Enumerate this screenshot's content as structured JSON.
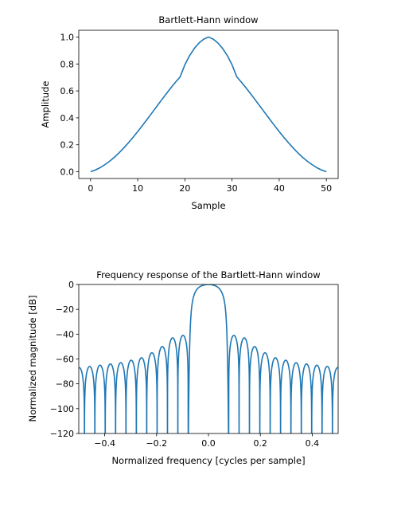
{
  "chart_data": [
    {
      "type": "line",
      "title": "Bartlett-Hann window",
      "xlabel": "Sample",
      "ylabel": "Amplitude",
      "xlim": [
        -2.5,
        52.5
      ],
      "ylim": [
        -0.05,
        1.05
      ],
      "xticks": [
        "0",
        "10",
        "20",
        "30",
        "40",
        "50"
      ],
      "yticks": [
        "0.0",
        "0.2",
        "0.4",
        "0.6",
        "0.8",
        "1.0"
      ],
      "color": "#1f77b4",
      "grid": false,
      "series": [
        {
          "x": [
            0,
            1,
            2,
            3,
            4,
            5,
            6,
            7,
            8,
            9,
            10,
            11,
            12,
            13,
            14,
            15,
            16,
            17,
            18,
            19,
            20,
            21,
            22,
            23,
            24,
            25,
            26,
            27,
            28,
            29,
            30,
            31,
            32,
            33,
            34,
            35,
            36,
            37,
            38,
            39,
            40,
            41,
            42,
            43,
            44,
            45,
            46,
            47,
            48,
            49,
            50
          ],
          "values": [
            0.0,
            0.013,
            0.03,
            0.052,
            0.077,
            0.106,
            0.139,
            0.175,
            0.214,
            0.255,
            0.298,
            0.343,
            0.389,
            0.436,
            0.483,
            0.53,
            0.576,
            0.621,
            0.664,
            0.705,
            0.794,
            0.862,
            0.915,
            0.956,
            0.984,
            1.0,
            0.984,
            0.956,
            0.915,
            0.862,
            0.794,
            0.705,
            0.664,
            0.621,
            0.576,
            0.53,
            0.483,
            0.436,
            0.389,
            0.343,
            0.298,
            0.255,
            0.214,
            0.175,
            0.139,
            0.106,
            0.077,
            0.052,
            0.03,
            0.013,
            0.0
          ]
        }
      ]
    },
    {
      "type": "line",
      "title": "Frequency response of the Bartlett-Hann window",
      "xlabel": "Normalized frequency [cycles per sample]",
      "ylabel": "Normalized magnitude [dB]",
      "xlim": [
        -0.5,
        0.5
      ],
      "ylim": [
        -120,
        0
      ],
      "xticks": [
        "−0.4",
        "−0.2",
        "0.0",
        "0.2",
        "0.4"
      ],
      "yticks": [
        "−120",
        "−100",
        "−80",
        "−60",
        "−40",
        "−20",
        "0"
      ],
      "color": "#1f77b4",
      "grid": false,
      "main_lobe_width": 0.078,
      "sidelobe_levels_db": [
        -41,
        -43,
        -50,
        -55,
        -59,
        -61,
        -63,
        -64,
        -65,
        -66,
        -67,
        -68
      ]
    }
  ]
}
